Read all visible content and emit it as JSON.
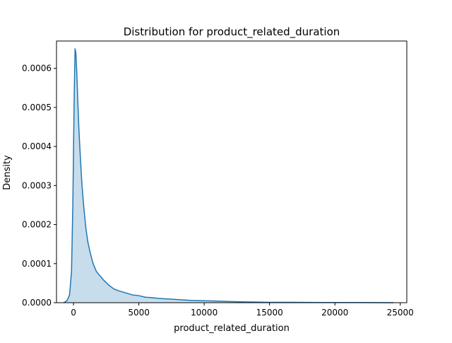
{
  "chart_data": {
    "type": "area",
    "title": "Distribution for product_related_duration",
    "xlabel": "product_related_duration",
    "ylabel": "Density",
    "xlim": [
      -1300,
      25500
    ],
    "ylim": [
      0,
      0.00067
    ],
    "xticks": [
      0,
      5000,
      10000,
      15000,
      20000,
      25000
    ],
    "yticks": [
      0.0,
      0.0001,
      0.0002,
      0.0003,
      0.0004,
      0.0005,
      0.0006
    ],
    "ytick_labels": [
      "0.0000",
      "0.0001",
      "0.0002",
      "0.0003",
      "0.0004",
      "0.0005",
      "0.0006"
    ],
    "grid": false,
    "series": [
      {
        "line_color": "#1f77b4",
        "fill_color": "#1f77b4",
        "fill_opacity": 0.25,
        "x": [
          -760,
          -500,
          -300,
          -150,
          -50,
          50,
          120,
          180,
          250,
          330,
          420,
          530,
          650,
          800,
          950,
          1100,
          1300,
          1500,
          1750,
          2000,
          2300,
          2700,
          3100,
          3500,
          4000,
          4500,
          5000,
          5500,
          6000,
          6500,
          7000,
          7500,
          8000,
          9000,
          10000,
          11000,
          12000,
          13000,
          14000,
          15000,
          17000,
          19000,
          21000,
          23000,
          24500
        ],
        "y": [
          0,
          5e-06,
          2e-05,
          8e-05,
          0.00025,
          0.00052,
          0.00065,
          0.00064,
          0.00059,
          0.000515,
          0.00044,
          0.00037,
          0.0003,
          0.00024,
          0.00019,
          0.000155,
          0.000125,
          0.0001,
          8e-05,
          7e-05,
          5.8e-05,
          4.5e-05,
          3.5e-05,
          3e-05,
          2.5e-05,
          2e-05,
          1.8e-05,
          1.4e-05,
          1.3e-05,
          1.1e-05,
          1e-05,
          9e-06,
          8e-06,
          6e-06,
          5e-06,
          4e-06,
          3e-06,
          2e-06,
          1.5e-06,
          1e-06,
          8e-07,
          5e-07,
          4e-07,
          3e-07,
          0
        ]
      }
    ]
  }
}
